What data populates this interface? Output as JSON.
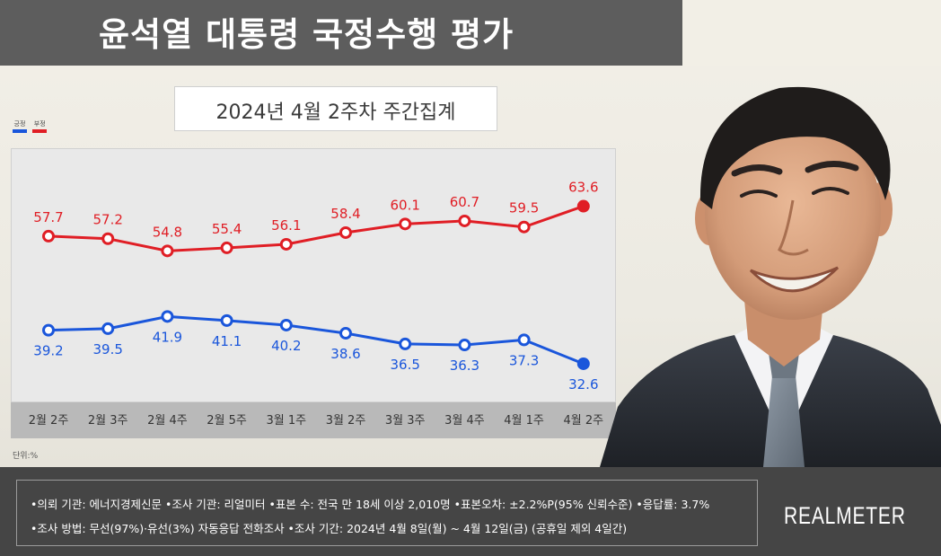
{
  "header": {
    "title": "윤석열 대통령 국정수행 평가",
    "subtitle": "2024년 4월 2주차 주간집계"
  },
  "legend": {
    "items": [
      {
        "label": "긍정",
        "color": "#1a56db"
      },
      {
        "label": "부정",
        "color": "#e01e25"
      }
    ]
  },
  "unit": "단위:%",
  "chart_data": {
    "type": "line",
    "categories": [
      "2월 2주",
      "2월 3주",
      "2월 4주",
      "2월 5주",
      "3월 1주",
      "3월 2주",
      "3월 3주",
      "3월 4주",
      "4월 1주",
      "4월 2주"
    ],
    "series": [
      {
        "name": "부정",
        "color": "#e01e25",
        "values": [
          57.7,
          57.2,
          54.8,
          55.4,
          56.1,
          58.4,
          60.1,
          60.7,
          59.5,
          63.6
        ],
        "labels_position": "above"
      },
      {
        "name": "긍정",
        "color": "#1a56db",
        "values": [
          39.2,
          39.5,
          41.9,
          41.1,
          40.2,
          38.6,
          36.5,
          36.3,
          37.3,
          32.6
        ],
        "labels_position": "below"
      }
    ],
    "ylim": [
      25,
      75
    ],
    "grid": false,
    "legend_position": "top-left"
  },
  "footer": {
    "line1": "•의뢰 기관: 에너지경제신문 •조사 기관: 리얼미터 •표본 수: 전국 만 18세 이상 2,010명 •표본오차: ±2.2%P(95% 신뢰수준) •응답률: 3.7%",
    "line2": "•조사 방법: 무선(97%)·유선(3%) 자동응답 전화조사 •조사 기간: 2024년 4월 8일(월) ~ 4월 12일(금) (공휴일 제외 4일간)",
    "brand": "REALMETER"
  }
}
